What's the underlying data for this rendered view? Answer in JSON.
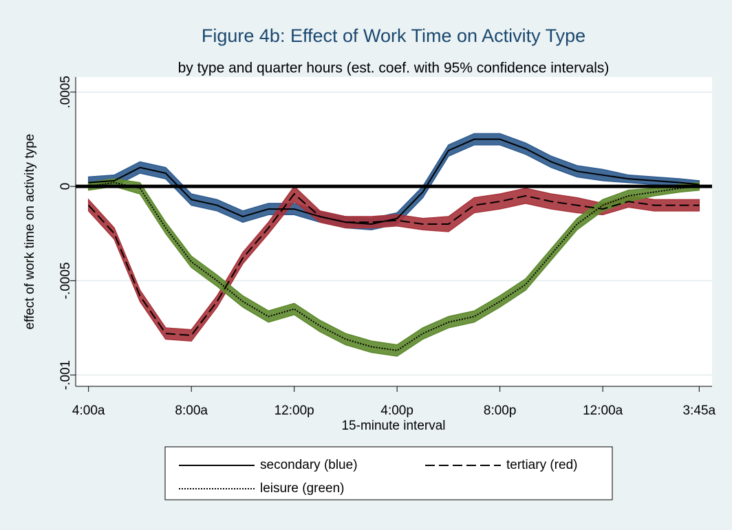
{
  "chart_data": {
    "type": "line",
    "title": "Figure 4b: Effect of Work Time on Activity Type",
    "subtitle": "by type and quarter hours (est. coef. with 95% confidence intervals)",
    "x_label": "15-minute interval",
    "y_label": "effect of work time on activity type",
    "x": [
      0,
      4,
      8,
      12,
      16,
      20,
      24,
      28,
      32,
      36,
      40,
      44,
      48,
      52,
      56,
      60,
      64,
      68,
      72,
      76,
      80,
      84,
      88,
      92,
      95
    ],
    "xlim": [
      -2,
      97
    ],
    "xticks": [
      {
        "value": 0,
        "label": "4:00a"
      },
      {
        "value": 16,
        "label": "8:00a"
      },
      {
        "value": 32,
        "label": "12:00p"
      },
      {
        "value": 48,
        "label": "4:00p"
      },
      {
        "value": 64,
        "label": "8:00p"
      },
      {
        "value": 80,
        "label": "12:00a"
      },
      {
        "value": 95,
        "label": "3:45a"
      }
    ],
    "ylim": [
      -0.00106,
      0.00058
    ],
    "yticks": [
      {
        "value": -0.001,
        "label": "-.001"
      },
      {
        "value": -0.0005,
        "label": "-.0005"
      },
      0,
      {
        "value": 0.0005,
        "label": ".0005"
      }
    ],
    "grid": true,
    "reference_line": 0,
    "series": [
      {
        "name": "secondary (blue)",
        "color": "#2e5b8e",
        "line_style": "solid",
        "values": [
          2e-05,
          3e-05,
          0.0001,
          7e-05,
          -7e-05,
          -0.0001,
          -0.00016,
          -0.00012,
          -0.00012,
          -0.00016,
          -0.00019,
          -0.0002,
          -0.00017,
          -3e-05,
          0.00019,
          0.00025,
          0.00025,
          0.0002,
          0.00013,
          8e-05,
          6e-05,
          4e-05,
          3e-05,
          2e-05,
          1e-05
        ],
        "lower": [
          -1e-05,
          0,
          7e-05,
          4e-05,
          -0.0001,
          -0.00013,
          -0.00019,
          -0.00015,
          -0.00015,
          -0.00019,
          -0.00022,
          -0.00023,
          -0.0002,
          -6e-05,
          0.00016,
          0.00022,
          0.00022,
          0.00017,
          0.0001,
          5e-05,
          3e-05,
          2e-05,
          1e-05,
          0,
          -1e-05
        ],
        "upper": [
          5e-05,
          6e-05,
          0.00013,
          0.0001,
          -4e-05,
          -7e-05,
          -0.00013,
          -9e-05,
          -9e-05,
          -0.00013,
          -0.00016,
          -0.00017,
          -0.00014,
          0,
          0.00022,
          0.00028,
          0.00028,
          0.00023,
          0.00016,
          0.00011,
          9e-05,
          6e-05,
          5e-05,
          4e-05,
          3e-05
        ]
      },
      {
        "name": "tertiary (red)",
        "color": "#a8333b",
        "line_style": "dashed",
        "values": [
          -0.0001,
          -0.00025,
          -0.00058,
          -0.00078,
          -0.00079,
          -0.00061,
          -0.00038,
          -0.00022,
          -4e-05,
          -0.00016,
          -0.00019,
          -0.00019,
          -0.00018,
          -0.0002,
          -0.0002,
          -0.0001,
          -8e-05,
          -5e-05,
          -8e-05,
          -0.0001,
          -0.00012,
          -8e-05,
          -0.0001,
          -0.0001,
          -0.0001
        ],
        "lower": [
          -0.00013,
          -0.00028,
          -0.00061,
          -0.00081,
          -0.00082,
          -0.00064,
          -0.00041,
          -0.00025,
          -8e-05,
          -0.00019,
          -0.00022,
          -0.00022,
          -0.00021,
          -0.00023,
          -0.00024,
          -0.00014,
          -0.00012,
          -9e-05,
          -0.00012,
          -0.00014,
          -0.00015,
          -0.00011,
          -0.00013,
          -0.00013,
          -0.00013
        ],
        "upper": [
          -7e-05,
          -0.00022,
          -0.00055,
          -0.00075,
          -0.00076,
          -0.00058,
          -0.00035,
          -0.00019,
          0,
          -0.00013,
          -0.00016,
          -0.00016,
          -0.00015,
          -0.00017,
          -0.00016,
          -6e-05,
          -4e-05,
          -1e-05,
          -4e-05,
          -6e-05,
          -9e-05,
          -5e-05,
          -7e-05,
          -7e-05,
          -7e-05
        ]
      },
      {
        "name": "leisure (green)",
        "color": "#5e8a2e",
        "line_style": "dotted",
        "values": [
          0,
          2e-05,
          -1e-05,
          -0.00022,
          -0.0004,
          -0.0005,
          -0.00061,
          -0.00069,
          -0.00065,
          -0.00074,
          -0.00081,
          -0.00085,
          -0.00087,
          -0.00078,
          -0.00072,
          -0.00069,
          -0.00061,
          -0.00052,
          -0.00036,
          -0.0002,
          -0.0001,
          -5e-05,
          -3e-05,
          -1e-05,
          0
        ],
        "lower": [
          -2e-05,
          0,
          -4e-05,
          -0.00025,
          -0.00043,
          -0.00053,
          -0.00064,
          -0.00072,
          -0.00068,
          -0.00077,
          -0.00084,
          -0.00088,
          -0.0009,
          -0.00081,
          -0.00075,
          -0.00072,
          -0.00064,
          -0.00055,
          -0.00039,
          -0.00023,
          -0.00013,
          -8e-05,
          -5e-05,
          -3e-05,
          -2e-05
        ],
        "upper": [
          2e-05,
          4e-05,
          2e-05,
          -0.00019,
          -0.00037,
          -0.00047,
          -0.00058,
          -0.00066,
          -0.00062,
          -0.00071,
          -0.00078,
          -0.00082,
          -0.00084,
          -0.00075,
          -0.00069,
          -0.00066,
          -0.00058,
          -0.00049,
          -0.00033,
          -0.00017,
          -7e-05,
          -2e-05,
          -1e-05,
          1e-05,
          2e-05
        ]
      }
    ]
  }
}
